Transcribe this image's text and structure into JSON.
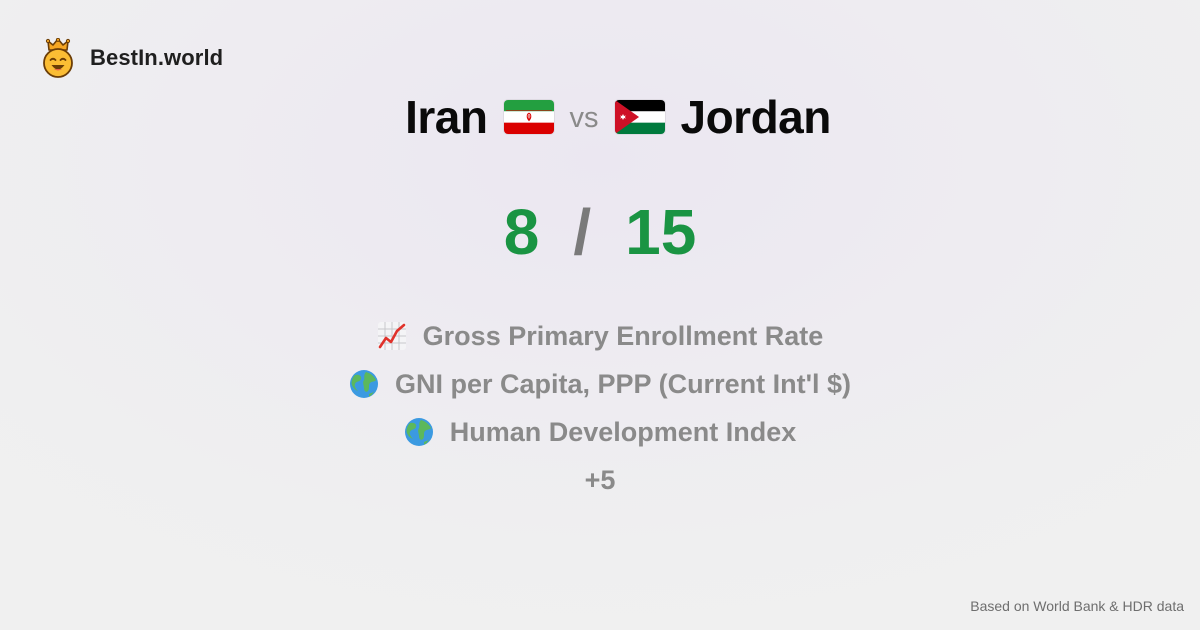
{
  "brand": {
    "name": "BestIn.world",
    "logo_icon": "crowned-smiley-icon"
  },
  "comparison": {
    "left_country": "Iran",
    "left_flag_icon": "iran-flag-icon",
    "vs_label": "vs",
    "right_country": "Jordan",
    "right_flag_icon": "jordan-flag-icon"
  },
  "score": {
    "left": "8",
    "separator": "/",
    "right": "15",
    "color": "#1a9443"
  },
  "metrics": [
    {
      "icon": "chart-increasing-icon",
      "label": "Gross Primary Enrollment Rate"
    },
    {
      "icon": "globe-icon",
      "label": "GNI per Capita, PPP (Current Int'l $)"
    },
    {
      "icon": "globe-icon",
      "label": "Human Development Index"
    }
  ],
  "more_label": "+5",
  "footer": {
    "source": "Based on World Bank & HDR data"
  }
}
